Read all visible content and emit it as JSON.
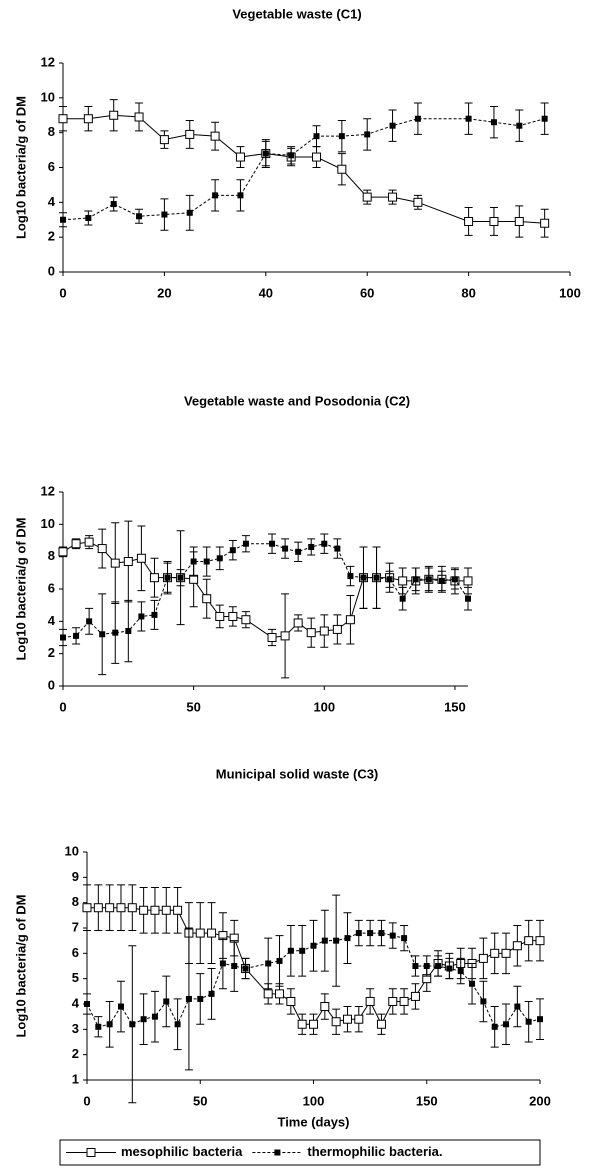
{
  "chart_data": [
    {
      "type": "line",
      "title": "Vegetable waste (C1)",
      "y_label": "Log10 bacteria/g of DM",
      "x": [
        0,
        5,
        10,
        15,
        20,
        25,
        30,
        35,
        40,
        45,
        50,
        55,
        60,
        65,
        70,
        80,
        85,
        90,
        95
      ],
      "xlim": [
        0,
        100
      ],
      "xticks": [
        0,
        20,
        40,
        60,
        80,
        100
      ],
      "ylim": [
        0,
        12
      ],
      "yticks": [
        0,
        2,
        4,
        6,
        8,
        10,
        12
      ],
      "series": [
        {
          "color": "#000000",
          "marker": "open-square",
          "dash": false,
          "values": [
            8.8,
            8.8,
            9.0,
            8.9,
            7.6,
            7.9,
            7.8,
            6.6,
            6.8,
            6.6,
            6.6,
            5.9,
            4.3,
            4.3,
            4.0,
            2.9,
            2.9,
            2.9,
            2.8
          ],
          "errors": [
            0.7,
            0.7,
            0.9,
            0.8,
            0.5,
            0.8,
            0.8,
            0.6,
            0.7,
            0.5,
            0.6,
            0.9,
            0.4,
            0.4,
            0.4,
            0.8,
            0.8,
            0.9,
            0.8
          ]
        },
        {
          "color": "#000000",
          "marker": "filled-square",
          "dash": true,
          "values": [
            3.0,
            3.1,
            3.9,
            3.2,
            3.3,
            3.4,
            4.4,
            4.4,
            6.8,
            6.7,
            7.8,
            7.8,
            7.9,
            8.4,
            8.8,
            8.8,
            8.6,
            8.4,
            8.8
          ],
          "errors": [
            0.4,
            0.4,
            0.4,
            0.4,
            0.9,
            1.0,
            0.9,
            0.9,
            0.8,
            0.5,
            0.6,
            0.9,
            0.9,
            0.9,
            0.9,
            0.9,
            0.9,
            0.9,
            0.9
          ]
        }
      ]
    },
    {
      "type": "line",
      "title": "Vegetable waste and Posodonia (C2)",
      "y_label": "Log10 bacteria/g of DM",
      "x": [
        0,
        5,
        10,
        15,
        20,
        25,
        30,
        35,
        40,
        45,
        50,
        55,
        60,
        65,
        70,
        80,
        85,
        90,
        95,
        100,
        105,
        110,
        115,
        120,
        125,
        130,
        135,
        140,
        145,
        150,
        155
      ],
      "xlim": [
        0,
        155
      ],
      "xticks": [
        0,
        50,
        100,
        150
      ],
      "ylim": [
        0,
        12
      ],
      "yticks": [
        0,
        2,
        4,
        6,
        8,
        10,
        12
      ],
      "series": [
        {
          "color": "#000000",
          "marker": "open-square",
          "dash": false,
          "values": [
            8.3,
            8.8,
            8.9,
            8.5,
            7.6,
            7.7,
            7.9,
            6.7,
            6.7,
            6.7,
            6.6,
            5.4,
            4.3,
            4.3,
            4.1,
            3.0,
            3.1,
            3.9,
            3.3,
            3.4,
            3.5,
            4.1,
            6.7,
            6.7,
            6.7,
            6.5,
            6.5,
            6.6,
            6.6,
            6.5,
            6.5
          ],
          "errors": [
            0.3,
            0.3,
            0.4,
            1.2,
            2.5,
            2.5,
            2.0,
            1.2,
            1.0,
            2.9,
            1.7,
            1.2,
            0.7,
            0.6,
            0.5,
            0.5,
            2.6,
            0.5,
            0.9,
            1.0,
            0.9,
            1.5,
            1.9,
            1.9,
            0.9,
            0.8,
            0.8,
            0.8,
            0.8,
            0.8,
            0.8
          ]
        },
        {
          "color": "#000000",
          "marker": "filled-square",
          "dash": true,
          "values": [
            3.0,
            3.1,
            4.0,
            3.2,
            3.3,
            3.4,
            4.3,
            4.4,
            6.7,
            6.7,
            7.7,
            7.7,
            7.9,
            8.4,
            8.8,
            8.8,
            8.5,
            8.3,
            8.6,
            8.8,
            8.5,
            6.8,
            6.7,
            6.7,
            6.6,
            5.4,
            6.6,
            6.6,
            6.5,
            6.6,
            5.4
          ],
          "errors": [
            0.5,
            0.5,
            0.8,
            2.5,
            1.9,
            1.9,
            0.9,
            0.9,
            0.9,
            0.5,
            0.9,
            0.9,
            0.7,
            0.6,
            0.5,
            0.6,
            0.6,
            0.6,
            0.5,
            0.6,
            0.6,
            0.6,
            1.9,
            1.9,
            0.5,
            0.7,
            0.7,
            0.7,
            0.6,
            0.6,
            0.7
          ]
        }
      ]
    },
    {
      "type": "line",
      "title": "Municipal solid waste (C3)",
      "y_label": "Log10 bacteria/g of DM",
      "x_label": "Time (days)",
      "x": [
        0,
        5,
        10,
        15,
        20,
        25,
        30,
        35,
        40,
        45,
        50,
        55,
        60,
        65,
        70,
        80,
        85,
        90,
        95,
        100,
        105,
        110,
        115,
        120,
        125,
        130,
        135,
        140,
        145,
        150,
        155,
        160,
        165,
        170,
        175,
        180,
        185,
        190,
        195,
        200
      ],
      "xlim": [
        0,
        200
      ],
      "xticks": [
        0,
        50,
        100,
        150,
        200
      ],
      "ylim": [
        1,
        10
      ],
      "yticks": [
        1,
        2,
        3,
        4,
        5,
        6,
        7,
        8,
        9,
        10
      ],
      "legend": "bottom",
      "series": [
        {
          "name": "mesophilic bacteria",
          "color": "#000000",
          "marker": "open-square",
          "dash": false,
          "values": [
            7.8,
            7.8,
            7.8,
            7.8,
            7.8,
            7.7,
            7.7,
            7.7,
            7.7,
            6.8,
            6.8,
            6.8,
            6.7,
            6.6,
            5.4,
            4.4,
            4.4,
            4.1,
            3.2,
            3.2,
            3.9,
            3.3,
            3.4,
            3.4,
            4.1,
            3.2,
            4.1,
            4.1,
            4.3,
            5.0,
            5.6,
            5.5,
            5.6,
            5.6,
            5.8,
            6.0,
            6.0,
            6.3,
            6.5,
            6.5
          ],
          "errors": [
            0.9,
            0.9,
            0.9,
            0.9,
            0.9,
            0.9,
            0.9,
            0.9,
            0.9,
            1.2,
            1.2,
            1.2,
            0.9,
            0.7,
            0.4,
            0.4,
            0.4,
            0.5,
            0.4,
            0.4,
            0.5,
            0.5,
            0.5,
            0.5,
            0.5,
            0.4,
            0.5,
            0.5,
            0.5,
            0.5,
            0.5,
            0.5,
            0.6,
            0.6,
            0.8,
            0.8,
            0.8,
            0.8,
            0.8,
            0.8
          ]
        },
        {
          "name": "thermophilic bacteria.",
          "color": "#000000",
          "marker": "filled-square",
          "dash": true,
          "values": [
            4.0,
            3.1,
            3.2,
            3.9,
            3.2,
            3.4,
            3.5,
            4.1,
            3.2,
            4.2,
            4.2,
            4.4,
            5.6,
            5.5,
            5.4,
            5.6,
            5.7,
            6.1,
            6.1,
            6.3,
            6.5,
            6.5,
            6.6,
            6.8,
            6.8,
            6.8,
            6.7,
            6.6,
            5.5,
            5.5,
            5.5,
            5.4,
            5.3,
            4.8,
            4.1,
            3.1,
            3.2,
            3.9,
            3.3,
            3.4
          ],
          "errors": [
            0.4,
            0.4,
            0.9,
            1.0,
            3.1,
            1.0,
            1.0,
            1.0,
            1.0,
            2.8,
            1.0,
            1.0,
            1.0,
            1.0,
            0.4,
            1.0,
            1.0,
            1.0,
            1.0,
            1.0,
            1.2,
            1.8,
            1.0,
            0.5,
            0.5,
            0.5,
            0.5,
            0.5,
            0.4,
            0.4,
            0.4,
            0.4,
            0.5,
            0.8,
            0.8,
            0.8,
            0.8,
            0.8,
            0.8,
            0.8
          ]
        }
      ]
    }
  ]
}
